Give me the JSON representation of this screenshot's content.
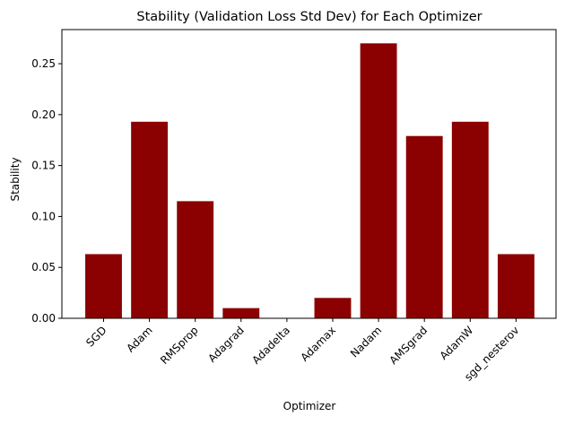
{
  "chart_data": {
    "type": "bar",
    "title": "Stability (Validation Loss Std Dev) for Each Optimizer",
    "xlabel": "Optimizer",
    "ylabel": "Stability",
    "categories": [
      "SGD",
      "Adam",
      "RMSprop",
      "Adagrad",
      "Adadelta",
      "Adamax",
      "Nadam",
      "AMSgrad",
      "AdamW",
      "sgd_nesterov"
    ],
    "values": [
      0.063,
      0.193,
      0.115,
      0.01,
      0.0,
      0.02,
      0.27,
      0.179,
      0.193,
      0.063
    ],
    "ylim": [
      0,
      0.2835
    ],
    "yticks": [
      "0.00",
      "0.05",
      "0.10",
      "0.15",
      "0.20",
      "0.25"
    ],
    "bar_color": "#8b0000",
    "grid": false,
    "legend": "none",
    "x_tick_rotation_deg": 45
  }
}
